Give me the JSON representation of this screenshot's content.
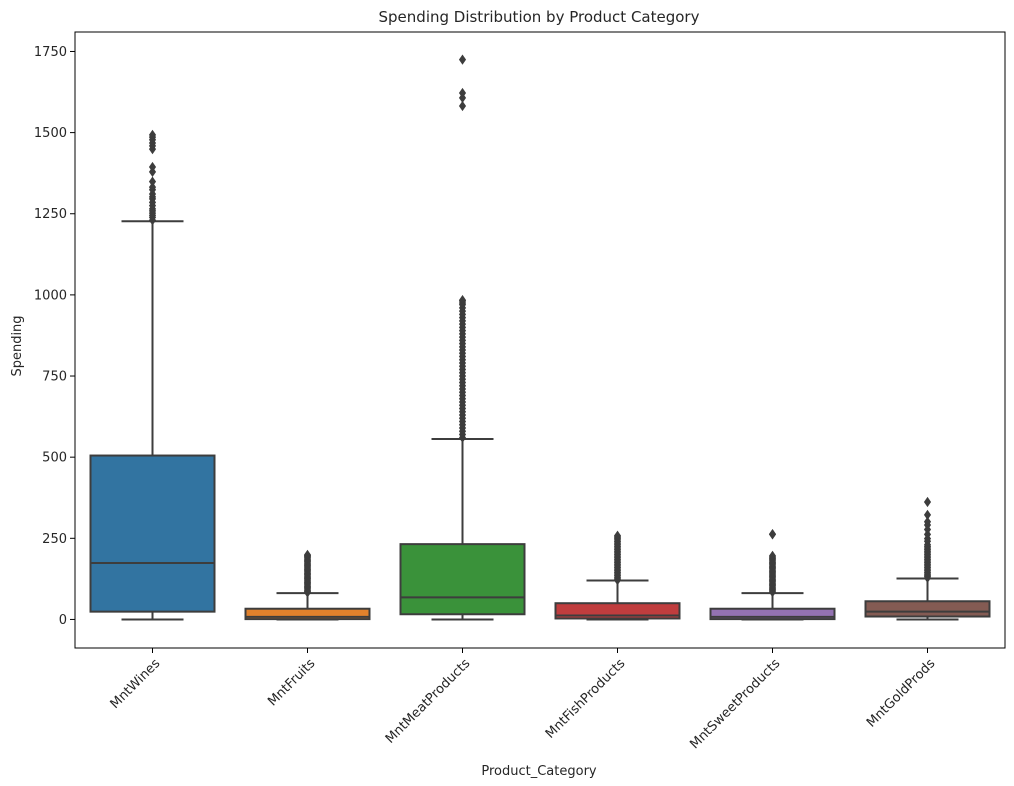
{
  "chart_data": {
    "type": "box",
    "title": "Spending Distribution by Product Category",
    "xlabel": "Product_Category",
    "ylabel": "Spending",
    "ylim": [
      -88,
      1810
    ],
    "yticks": [
      0,
      250,
      500,
      750,
      1000,
      1250,
      1500,
      1750
    ],
    "grid": false,
    "categories": [
      "MntWines",
      "MntFruits",
      "MntMeatProducts",
      "MntFishProducts",
      "MntSweetProducts",
      "MntGoldProds"
    ],
    "series": [
      {
        "category": "MntWines",
        "color": "#3274a1",
        "min": 0,
        "q1": 24,
        "median": 174,
        "q3": 505,
        "max": 1227,
        "outliers": [
          1230,
          1239,
          1245,
          1252,
          1259,
          1265,
          1275,
          1285,
          1296,
          1302,
          1311,
          1324,
          1332,
          1349,
          1379,
          1394,
          1449,
          1459,
          1468,
          1478,
          1486,
          1493
        ]
      },
      {
        "category": "MntFruits",
        "color": "#e1812c",
        "min": 0,
        "q1": 1,
        "median": 8,
        "q3": 33,
        "max": 81,
        "outliers": [
          83,
          86,
          90,
          94,
          98,
          102,
          106,
          110,
          114,
          118,
          122,
          126,
          130,
          134,
          138,
          142,
          146,
          150,
          154,
          158,
          162,
          166,
          170,
          174,
          178,
          182,
          186,
          190,
          194,
          197,
          199
        ]
      },
      {
        "category": "MntMeatProducts",
        "color": "#3a923a",
        "min": 0,
        "q1": 16,
        "median": 68,
        "q3": 232,
        "max": 556,
        "outliers": [
          560,
          570,
          580,
          590,
          600,
          610,
          620,
          630,
          640,
          650,
          660,
          670,
          680,
          690,
          700,
          710,
          720,
          730,
          740,
          750,
          760,
          770,
          780,
          790,
          800,
          810,
          820,
          830,
          840,
          850,
          860,
          870,
          880,
          890,
          900,
          910,
          920,
          930,
          940,
          950,
          960,
          970,
          975,
          981,
          984,
          1582,
          1607,
          1622,
          1725
        ]
      },
      {
        "category": "MntFishProducts",
        "color": "#c03d3e",
        "min": 0,
        "q1": 3,
        "median": 12,
        "q3": 50,
        "max": 120,
        "outliers": [
          121,
          125,
          130,
          135,
          140,
          145,
          150,
          155,
          160,
          165,
          170,
          175,
          180,
          185,
          190,
          195,
          200,
          205,
          210,
          215,
          220,
          225,
          230,
          235,
          240,
          245,
          250,
          254,
          258
        ]
      },
      {
        "category": "MntSweetProducts",
        "color": "#9372b2",
        "min": 0,
        "q1": 1,
        "median": 8,
        "q3": 33,
        "max": 81,
        "outliers": [
          84,
          88,
          92,
          96,
          100,
          104,
          108,
          112,
          116,
          120,
          124,
          128,
          132,
          136,
          140,
          144,
          148,
          152,
          156,
          160,
          164,
          168,
          172,
          176,
          180,
          184,
          188,
          192,
          196,
          262,
          263
        ]
      },
      {
        "category": "MntGoldProds",
        "color": "#845b53",
        "min": 0,
        "q1": 9,
        "median": 24,
        "q3": 56,
        "max": 126,
        "outliers": [
          128,
          132,
          136,
          140,
          145,
          150,
          155,
          160,
          165,
          170,
          175,
          180,
          185,
          190,
          195,
          200,
          205,
          210,
          215,
          220,
          225,
          230,
          241,
          249,
          262,
          277,
          291,
          301,
          322,
          362
        ]
      }
    ]
  }
}
